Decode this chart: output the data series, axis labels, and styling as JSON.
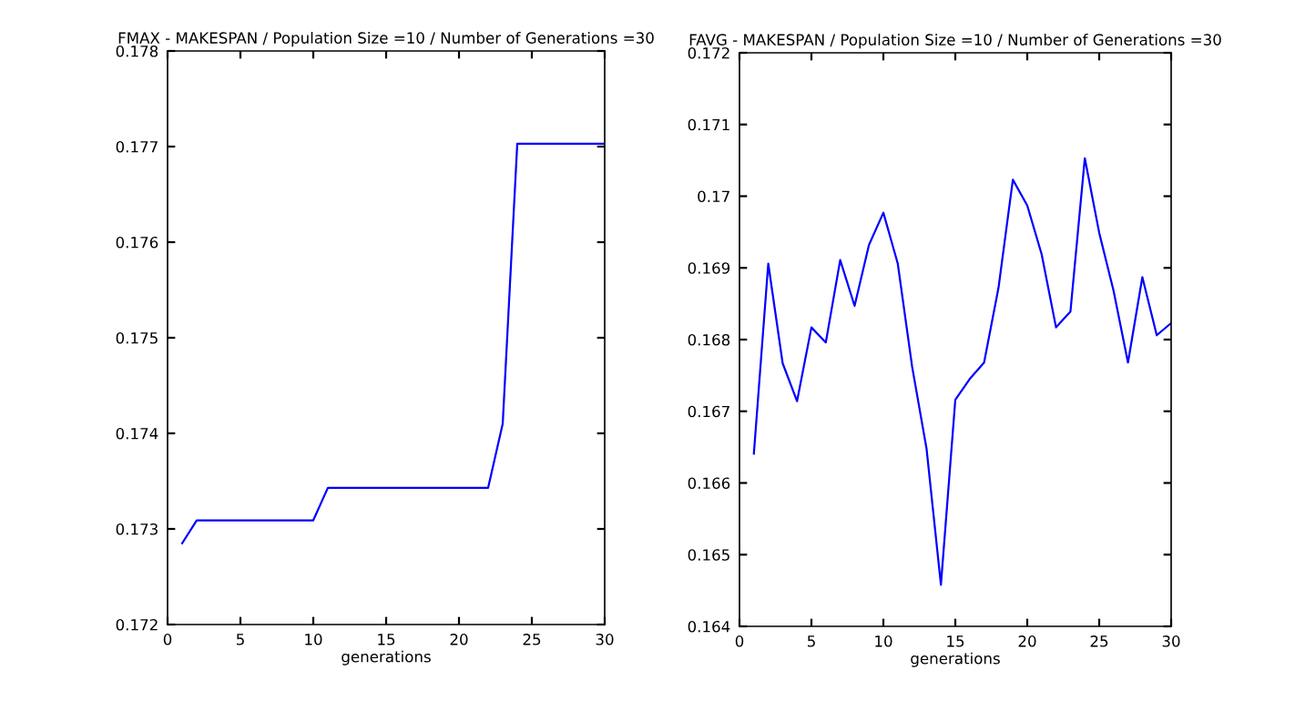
{
  "chart_data": [
    {
      "type": "line",
      "title": "FMAX - MAKESPAN / Population Size =10 / Number of Generations =30",
      "xlabel": "generations",
      "x": [
        1,
        2,
        3,
        4,
        5,
        6,
        7,
        8,
        9,
        10,
        11,
        12,
        13,
        14,
        15,
        16,
        17,
        18,
        19,
        20,
        21,
        22,
        23,
        24,
        25,
        26,
        27,
        28,
        29,
        30
      ],
      "series": [
        {
          "color": "#0000ff",
          "values": [
            0.17285,
            0.17309,
            0.17309,
            0.17309,
            0.17309,
            0.17309,
            0.17309,
            0.17309,
            0.17309,
            0.17309,
            0.17343,
            0.17343,
            0.17343,
            0.17343,
            0.17343,
            0.17343,
            0.17343,
            0.17343,
            0.17343,
            0.17343,
            0.17343,
            0.17343,
            0.1741,
            0.17703,
            0.17703,
            0.17703,
            0.17703,
            0.17703,
            0.17703,
            0.17703
          ]
        }
      ],
      "xlim": [
        0,
        30
      ],
      "xticks": [
        0,
        5,
        10,
        15,
        20,
        25,
        30
      ],
      "ylim": [
        0.172,
        0.178
      ],
      "yticks": [
        0.172,
        0.173,
        0.174,
        0.175,
        0.176,
        0.177,
        0.178
      ],
      "grid": false
    },
    {
      "type": "line",
      "title": "FAVG - MAKESPAN / Population Size =10 / Number of Generations =30",
      "xlabel": "generations",
      "x": [
        1,
        2,
        3,
        4,
        5,
        6,
        7,
        8,
        9,
        10,
        11,
        12,
        13,
        14,
        15,
        16,
        17,
        18,
        19,
        20,
        21,
        22,
        23,
        24,
        25,
        26,
        27,
        28,
        29,
        30
      ],
      "series": [
        {
          "color": "#0000ff",
          "values": [
            0.16641,
            0.16906,
            0.16767,
            0.16714,
            0.16817,
            0.16796,
            0.16911,
            0.16847,
            0.16932,
            0.16977,
            0.16906,
            0.16762,
            0.16648,
            0.16458,
            0.16716,
            0.16745,
            0.16768,
            0.16872,
            0.17023,
            0.16987,
            0.16919,
            0.16817,
            0.16839,
            0.17053,
            0.16949,
            0.16868,
            0.16768,
            0.16887,
            0.16806,
            0.16823
          ]
        }
      ],
      "xlim": [
        0,
        30
      ],
      "xticks": [
        0,
        5,
        10,
        15,
        20,
        25,
        30
      ],
      "ylim": [
        0.164,
        0.172
      ],
      "yticks": [
        0.164,
        0.165,
        0.166,
        0.167,
        0.168,
        0.169,
        {
          "value": 0.17,
          "label": "0.17"
        },
        0.171,
        0.172
      ],
      "grid": false
    }
  ]
}
